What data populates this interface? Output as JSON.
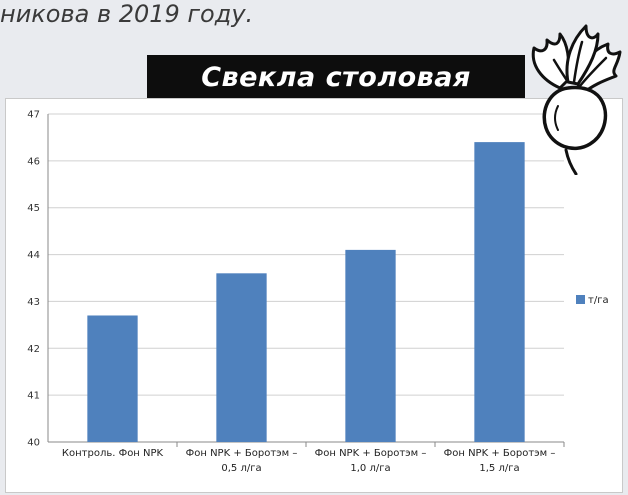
{
  "caption": "никова в 2019 году.",
  "banner": {
    "title": "Свекла столовая"
  },
  "icons": {
    "beet": "beetroot-icon"
  },
  "colors": {
    "bar": "#4f81bd",
    "banner": "#0d0d0d"
  },
  "chart_data": {
    "type": "bar",
    "categories": [
      [
        "Контроль. Фон NPK"
      ],
      [
        "Фон NPK + Боротэм –",
        "0,5 л/га"
      ],
      [
        "Фон NPK + Боротэм –",
        "1,0 л/га"
      ],
      [
        "Фон NPK + Боротэм –",
        "1,5 л/га"
      ]
    ],
    "series": [
      {
        "name": "т/га",
        "values": [
          42.7,
          43.6,
          44.1,
          46.4
        ]
      }
    ],
    "ylim": [
      40,
      47
    ],
    "yticks": [
      40,
      41,
      42,
      43,
      44,
      45,
      46,
      47
    ],
    "grid": true,
    "legend": "right"
  }
}
